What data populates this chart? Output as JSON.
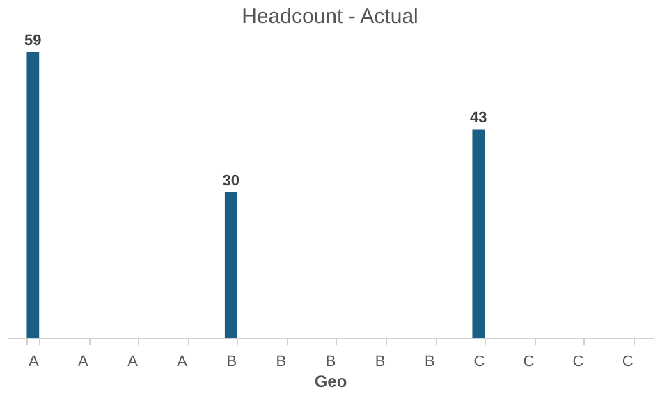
{
  "chart_data": {
    "type": "bar",
    "title": "Headcount - Actual",
    "xlabel": "Geo",
    "categories": [
      "A",
      "A",
      "A",
      "A",
      "B",
      "B",
      "B",
      "B",
      "B",
      "C",
      "C",
      "C",
      "C"
    ],
    "values": [
      59,
      null,
      null,
      null,
      30,
      null,
      null,
      null,
      null,
      43,
      null,
      null,
      null
    ],
    "color": "#1b5e85",
    "data_labels": true,
    "tick_labels": "x",
    "grid": false
  }
}
